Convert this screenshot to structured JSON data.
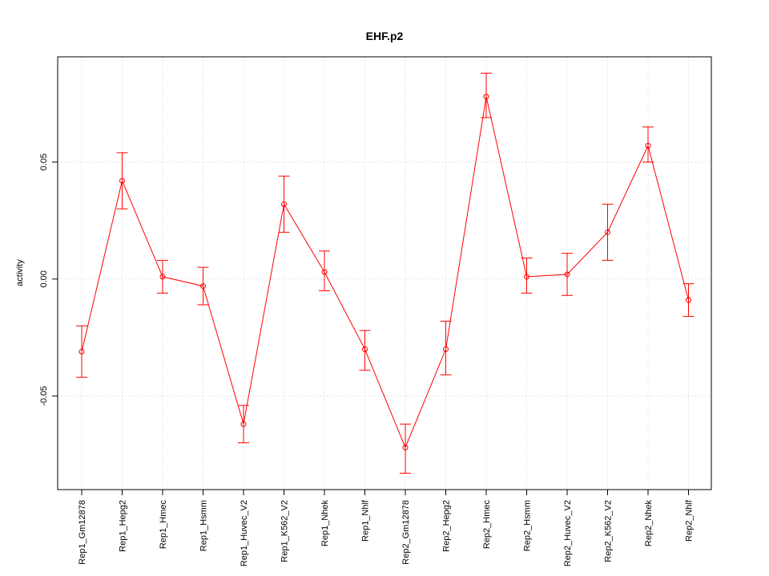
{
  "chart_data": {
    "type": "line",
    "title": "EHF.p2",
    "xlabel": "",
    "ylabel": "activity",
    "ylim": [
      -0.09,
      0.095
    ],
    "yticks": [
      -0.05,
      0.0,
      0.05
    ],
    "ytick_labels": [
      "-0.05",
      "0.00",
      "0.05"
    ],
    "grid": true,
    "color": "#ff0000",
    "categories": [
      "Rep1_Gm12878",
      "Rep1_Hepg2",
      "Rep1_Hmec",
      "Rep1_Hsmm",
      "Rep1_Huvec_V2",
      "Rep1_K562_V2",
      "Rep1_Nhek",
      "Rep1_Nhlf",
      "Rep2_Gm12878",
      "Rep2_Hepg2",
      "Rep2_Hmec",
      "Rep2_Hsmm",
      "Rep2_Huvec_V2",
      "Rep2_K562_V2",
      "Rep2_Nhek",
      "Rep2_Nhlf"
    ],
    "values": [
      -0.031,
      0.042,
      0.001,
      -0.003,
      -0.062,
      0.032,
      0.003,
      -0.03,
      -0.072,
      -0.03,
      0.078,
      0.001,
      0.002,
      0.02,
      0.057,
      -0.009
    ],
    "error_low": [
      -0.042,
      0.03,
      -0.006,
      -0.011,
      -0.07,
      0.02,
      -0.005,
      -0.039,
      -0.083,
      -0.041,
      0.069,
      -0.006,
      -0.007,
      0.008,
      0.05,
      -0.016
    ],
    "error_high": [
      -0.02,
      0.054,
      0.008,
      0.005,
      -0.054,
      0.044,
      0.012,
      -0.022,
      -0.062,
      -0.018,
      0.088,
      0.009,
      0.011,
      0.032,
      0.065,
      -0.002
    ]
  }
}
